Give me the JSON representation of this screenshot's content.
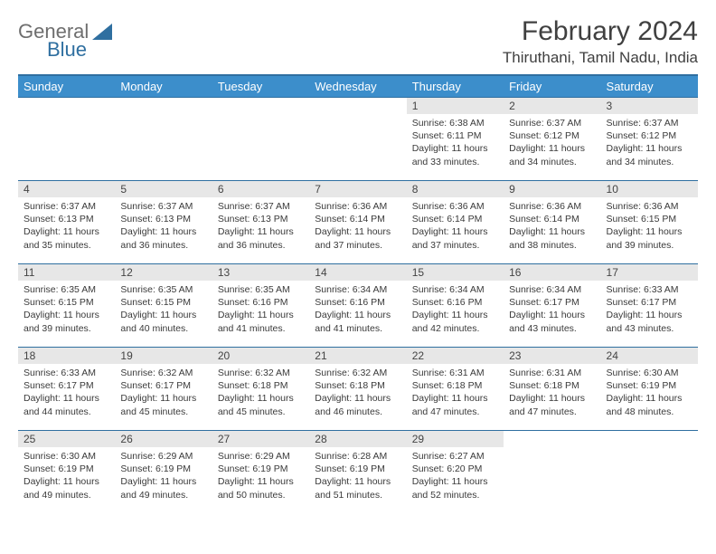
{
  "brand": {
    "part1": "General",
    "part2": "Blue"
  },
  "title": "February 2024",
  "location": "Thiruthani, Tamil Nadu, India",
  "colors": {
    "header_bg": "#3c8ecb",
    "header_border": "#2f6fa0",
    "daynum_bg": "#e7e7e7",
    "text": "#3a3a3a",
    "brand_gray": "#6e6e6e",
    "brand_blue": "#2f6fa0"
  },
  "typography": {
    "title_fontsize": 30,
    "location_fontsize": 17,
    "dayheader_fontsize": 13,
    "daynum_fontsize": 12,
    "body_fontsize": 10.5
  },
  "day_headers": [
    "Sunday",
    "Monday",
    "Tuesday",
    "Wednesday",
    "Thursday",
    "Friday",
    "Saturday"
  ],
  "weeks": [
    [
      {
        "n": "",
        "sr": "",
        "ss": "",
        "dl": "",
        "empty": true
      },
      {
        "n": "",
        "sr": "",
        "ss": "",
        "dl": "",
        "empty": true
      },
      {
        "n": "",
        "sr": "",
        "ss": "",
        "dl": "",
        "empty": true
      },
      {
        "n": "",
        "sr": "",
        "ss": "",
        "dl": "",
        "empty": true
      },
      {
        "n": "1",
        "sr": "Sunrise: 6:38 AM",
        "ss": "Sunset: 6:11 PM",
        "dl": "Daylight: 11 hours and 33 minutes."
      },
      {
        "n": "2",
        "sr": "Sunrise: 6:37 AM",
        "ss": "Sunset: 6:12 PM",
        "dl": "Daylight: 11 hours and 34 minutes."
      },
      {
        "n": "3",
        "sr": "Sunrise: 6:37 AM",
        "ss": "Sunset: 6:12 PM",
        "dl": "Daylight: 11 hours and 34 minutes."
      }
    ],
    [
      {
        "n": "4",
        "sr": "Sunrise: 6:37 AM",
        "ss": "Sunset: 6:13 PM",
        "dl": "Daylight: 11 hours and 35 minutes."
      },
      {
        "n": "5",
        "sr": "Sunrise: 6:37 AM",
        "ss": "Sunset: 6:13 PM",
        "dl": "Daylight: 11 hours and 36 minutes."
      },
      {
        "n": "6",
        "sr": "Sunrise: 6:37 AM",
        "ss": "Sunset: 6:13 PM",
        "dl": "Daylight: 11 hours and 36 minutes."
      },
      {
        "n": "7",
        "sr": "Sunrise: 6:36 AM",
        "ss": "Sunset: 6:14 PM",
        "dl": "Daylight: 11 hours and 37 minutes."
      },
      {
        "n": "8",
        "sr": "Sunrise: 6:36 AM",
        "ss": "Sunset: 6:14 PM",
        "dl": "Daylight: 11 hours and 37 minutes."
      },
      {
        "n": "9",
        "sr": "Sunrise: 6:36 AM",
        "ss": "Sunset: 6:14 PM",
        "dl": "Daylight: 11 hours and 38 minutes."
      },
      {
        "n": "10",
        "sr": "Sunrise: 6:36 AM",
        "ss": "Sunset: 6:15 PM",
        "dl": "Daylight: 11 hours and 39 minutes."
      }
    ],
    [
      {
        "n": "11",
        "sr": "Sunrise: 6:35 AM",
        "ss": "Sunset: 6:15 PM",
        "dl": "Daylight: 11 hours and 39 minutes."
      },
      {
        "n": "12",
        "sr": "Sunrise: 6:35 AM",
        "ss": "Sunset: 6:15 PM",
        "dl": "Daylight: 11 hours and 40 minutes."
      },
      {
        "n": "13",
        "sr": "Sunrise: 6:35 AM",
        "ss": "Sunset: 6:16 PM",
        "dl": "Daylight: 11 hours and 41 minutes."
      },
      {
        "n": "14",
        "sr": "Sunrise: 6:34 AM",
        "ss": "Sunset: 6:16 PM",
        "dl": "Daylight: 11 hours and 41 minutes."
      },
      {
        "n": "15",
        "sr": "Sunrise: 6:34 AM",
        "ss": "Sunset: 6:16 PM",
        "dl": "Daylight: 11 hours and 42 minutes."
      },
      {
        "n": "16",
        "sr": "Sunrise: 6:34 AM",
        "ss": "Sunset: 6:17 PM",
        "dl": "Daylight: 11 hours and 43 minutes."
      },
      {
        "n": "17",
        "sr": "Sunrise: 6:33 AM",
        "ss": "Sunset: 6:17 PM",
        "dl": "Daylight: 11 hours and 43 minutes."
      }
    ],
    [
      {
        "n": "18",
        "sr": "Sunrise: 6:33 AM",
        "ss": "Sunset: 6:17 PM",
        "dl": "Daylight: 11 hours and 44 minutes."
      },
      {
        "n": "19",
        "sr": "Sunrise: 6:32 AM",
        "ss": "Sunset: 6:17 PM",
        "dl": "Daylight: 11 hours and 45 minutes."
      },
      {
        "n": "20",
        "sr": "Sunrise: 6:32 AM",
        "ss": "Sunset: 6:18 PM",
        "dl": "Daylight: 11 hours and 45 minutes."
      },
      {
        "n": "21",
        "sr": "Sunrise: 6:32 AM",
        "ss": "Sunset: 6:18 PM",
        "dl": "Daylight: 11 hours and 46 minutes."
      },
      {
        "n": "22",
        "sr": "Sunrise: 6:31 AM",
        "ss": "Sunset: 6:18 PM",
        "dl": "Daylight: 11 hours and 47 minutes."
      },
      {
        "n": "23",
        "sr": "Sunrise: 6:31 AM",
        "ss": "Sunset: 6:18 PM",
        "dl": "Daylight: 11 hours and 47 minutes."
      },
      {
        "n": "24",
        "sr": "Sunrise: 6:30 AM",
        "ss": "Sunset: 6:19 PM",
        "dl": "Daylight: 11 hours and 48 minutes."
      }
    ],
    [
      {
        "n": "25",
        "sr": "Sunrise: 6:30 AM",
        "ss": "Sunset: 6:19 PM",
        "dl": "Daylight: 11 hours and 49 minutes."
      },
      {
        "n": "26",
        "sr": "Sunrise: 6:29 AM",
        "ss": "Sunset: 6:19 PM",
        "dl": "Daylight: 11 hours and 49 minutes."
      },
      {
        "n": "27",
        "sr": "Sunrise: 6:29 AM",
        "ss": "Sunset: 6:19 PM",
        "dl": "Daylight: 11 hours and 50 minutes."
      },
      {
        "n": "28",
        "sr": "Sunrise: 6:28 AM",
        "ss": "Sunset: 6:19 PM",
        "dl": "Daylight: 11 hours and 51 minutes."
      },
      {
        "n": "29",
        "sr": "Sunrise: 6:27 AM",
        "ss": "Sunset: 6:20 PM",
        "dl": "Daylight: 11 hours and 52 minutes."
      },
      {
        "n": "",
        "sr": "",
        "ss": "",
        "dl": "",
        "empty": true
      },
      {
        "n": "",
        "sr": "",
        "ss": "",
        "dl": "",
        "empty": true
      }
    ]
  ]
}
